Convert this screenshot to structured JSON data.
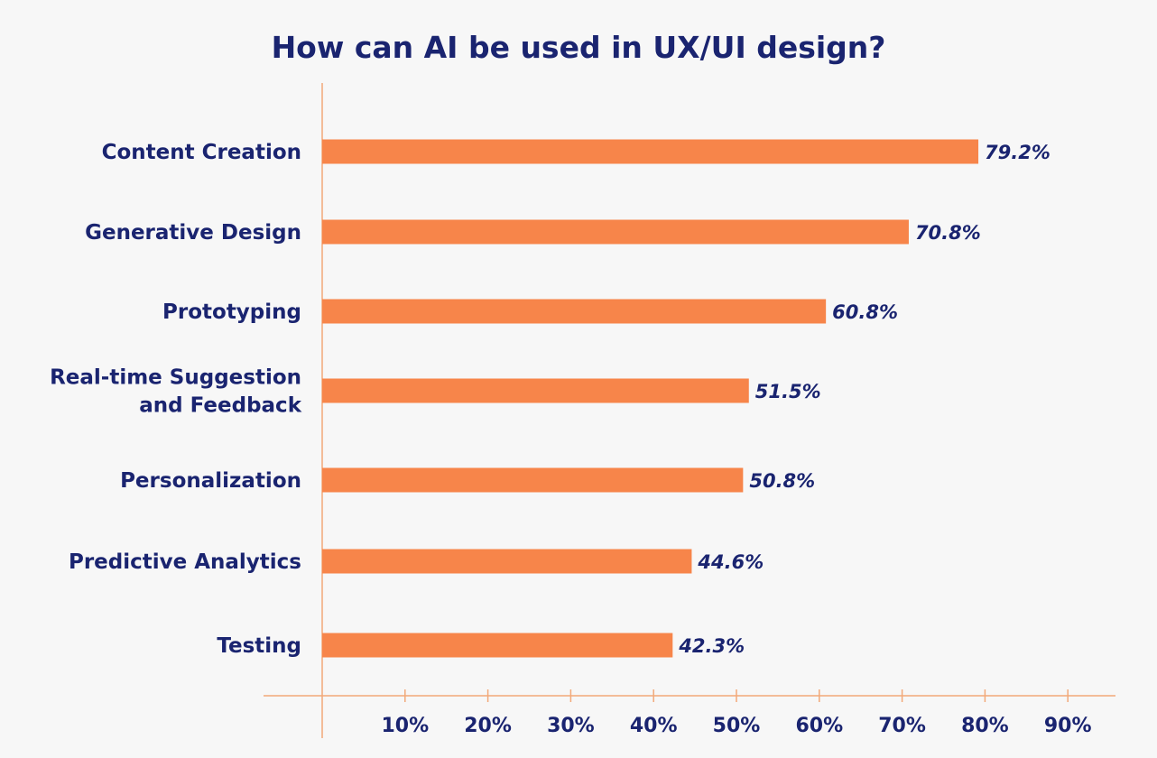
{
  "chart_data": {
    "type": "bar",
    "orientation": "horizontal",
    "title": "How can AI be used in UX/UI design?",
    "categories": [
      "Content Creation",
      "Generative Design",
      "Prototyping",
      "Real-time Suggestion and Feedback",
      "Personalization",
      "Predictive Analytics",
      "Testing"
    ],
    "category_lines": [
      [
        "Content Creation"
      ],
      [
        "Generative Design"
      ],
      [
        "Prototyping"
      ],
      [
        "Real-time Suggestion",
        "and Feedback"
      ],
      [
        "Personalization"
      ],
      [
        "Predictive Analytics"
      ],
      [
        "Testing"
      ]
    ],
    "values": [
      79.2,
      70.8,
      60.8,
      51.5,
      50.8,
      44.6,
      42.3
    ],
    "value_labels": [
      "79.2%",
      "70.8%",
      "60.8%",
      "51.5%",
      "50.8%",
      "44.6%",
      "42.3%"
    ],
    "xlim": [
      0,
      90
    ],
    "x_ticks": [
      10,
      20,
      30,
      40,
      50,
      60,
      70,
      80,
      90
    ],
    "x_tick_labels": [
      "10%",
      "20%",
      "30%",
      "40%",
      "50%",
      "60%",
      "70%",
      "80%",
      "90%"
    ],
    "xlabel": "",
    "ylabel": "",
    "grid": false,
    "legend": "none",
    "colors": {
      "bar": "#f7854a",
      "axis": "#f2a979",
      "text": "#1a2470",
      "background": "#f7f7f7"
    }
  }
}
